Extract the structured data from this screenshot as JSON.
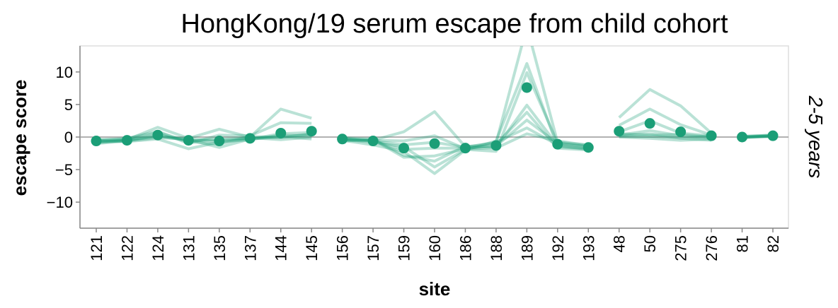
{
  "chart_data": {
    "type": "line",
    "title": "HongKong/19 serum escape from child cohort",
    "xlabel": "site",
    "ylabel": "escape score",
    "facet_label": "2-5 years",
    "ylim": [
      -14,
      14
    ],
    "yticks": [
      10,
      5,
      0,
      -5,
      -10
    ],
    "ytick_labels": [
      "10",
      "5",
      "0",
      "−5",
      "−10"
    ],
    "categories": [
      "121",
      "122",
      "124",
      "131",
      "135",
      "137",
      "144",
      "145",
      "156",
      "157",
      "159",
      "160",
      "186",
      "188",
      "189",
      "192",
      "193",
      "48",
      "50",
      "275",
      "276",
      "81",
      "82"
    ],
    "groups": [
      [
        "121",
        "122",
        "124",
        "131",
        "135",
        "137",
        "144",
        "145"
      ],
      [
        "156",
        "157",
        "159",
        "160",
        "186",
        "188",
        "189",
        "192",
        "193"
      ],
      [
        "48",
        "50",
        "275",
        "276"
      ],
      [
        "81",
        "82"
      ]
    ],
    "mean": [
      -0.6,
      -0.5,
      0.3,
      -0.5,
      -0.6,
      -0.2,
      0.6,
      0.9,
      -0.3,
      -0.6,
      -1.7,
      -1.0,
      -1.7,
      -1.3,
      7.6,
      -1.1,
      -1.6,
      0.9,
      2.1,
      0.8,
      0.2,
      0.0,
      0.2
    ],
    "series": [
      {
        "values": [
          -0.8,
          -0.4,
          1.5,
          -0.2,
          1.2,
          0.0,
          4.3,
          2.9,
          -0.2,
          -0.5,
          0.8,
          3.9,
          -1.5,
          -0.9,
          17.0,
          -0.8,
          -1.2,
          3.0,
          7.3,
          4.8,
          0.6,
          0.0,
          0.2
        ]
      },
      {
        "values": [
          -0.5,
          -0.2,
          0.9,
          -1.0,
          0.3,
          0.2,
          2.2,
          2.1,
          -0.5,
          -1.2,
          -2.2,
          -5.6,
          -2.0,
          -0.6,
          11.3,
          -1.5,
          -1.8,
          1.8,
          4.3,
          1.9,
          0.3,
          0.1,
          0.3
        ]
      },
      {
        "values": [
          -0.7,
          -0.6,
          0.2,
          -0.4,
          -1.6,
          -0.3,
          0.5,
          0.7,
          -0.4,
          -0.8,
          -1.5,
          -4.6,
          -1.9,
          -2.2,
          9.9,
          -0.9,
          -1.5,
          0.8,
          2.5,
          0.6,
          0.2,
          -0.1,
          0.1
        ]
      },
      {
        "values": [
          -0.6,
          -0.7,
          -0.3,
          -1.8,
          -0.8,
          -0.4,
          0.3,
          0.2,
          -0.1,
          -0.3,
          -2.8,
          -3.7,
          -1.4,
          -1.6,
          4.9,
          -1.3,
          -1.9,
          0.3,
          1.0,
          0.2,
          -0.2,
          0.0,
          0.2
        ]
      },
      {
        "values": [
          -0.9,
          -0.5,
          0.4,
          -0.7,
          -1.1,
          0.1,
          -0.1,
          0.5,
          -0.6,
          -0.4,
          -3.1,
          -2.9,
          -1.8,
          -1.1,
          3.8,
          -1.7,
          -2.0,
          0.2,
          0.5,
          -0.2,
          -0.5,
          0.1,
          0.3
        ]
      },
      {
        "values": [
          -0.4,
          -0.3,
          0.7,
          -0.6,
          -0.3,
          -0.2,
          0.1,
          -0.3,
          -0.2,
          -0.7,
          -1.9,
          -1.7,
          -1.7,
          -1.4,
          2.6,
          -1.0,
          -1.4,
          0.5,
          0.3,
          0.4,
          0.0,
          -0.1,
          0.2
        ]
      },
      {
        "values": [
          -1.0,
          -0.6,
          -0.1,
          -0.3,
          -0.5,
          -0.1,
          -0.4,
          0.0,
          -0.3,
          -0.6,
          -1.2,
          -0.8,
          -1.6,
          -0.8,
          1.4,
          -1.2,
          -1.7,
          0.1,
          0.1,
          -0.1,
          0.2,
          0.0,
          0.1
        ]
      },
      {
        "values": [
          -0.6,
          -0.4,
          0.1,
          -0.5,
          -0.7,
          -0.3,
          0.0,
          0.4,
          -0.4,
          -0.5,
          -0.6,
          0.2,
          -1.8,
          -1.7,
          0.5,
          -0.6,
          -1.3,
          0.0,
          -0.2,
          -0.5,
          -0.3,
          0.0,
          0.2
        ]
      }
    ],
    "colors": {
      "mean_point": "#1b9e77",
      "line": "#1b9e77",
      "zero_rule": "#999999",
      "frame": "#dddddd",
      "axis": "#888888"
    },
    "grid": false
  }
}
